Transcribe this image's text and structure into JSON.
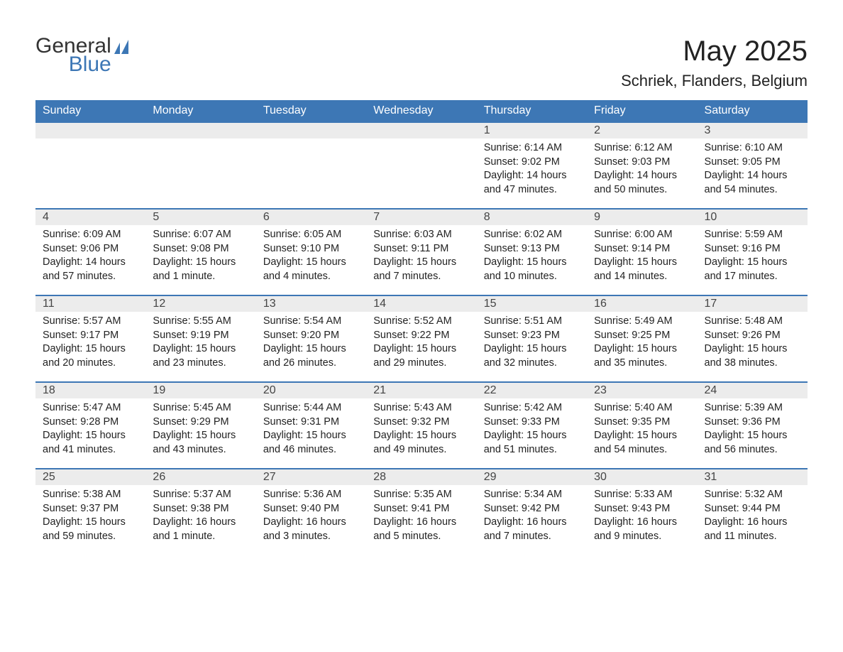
{
  "colors": {
    "header_bg": "#3d77b5",
    "header_text": "#ffffff",
    "daynum_bg": "#ececec",
    "daynum_text": "#444444",
    "week_border": "#3d77b5",
    "body_text": "#222222",
    "background": "#ffffff",
    "logo_grey": "#333333",
    "logo_blue": "#3d77b5"
  },
  "typography": {
    "month_title_size": 40,
    "location_size": 22,
    "dow_size": 16,
    "daynum_size": 16,
    "detail_size": 14.5,
    "font_family": "Arial"
  },
  "logo": {
    "text1": "General",
    "text2": "Blue"
  },
  "title": "May 2025",
  "location": "Schriek, Flanders, Belgium",
  "days_of_week": [
    "Sunday",
    "Monday",
    "Tuesday",
    "Wednesday",
    "Thursday",
    "Friday",
    "Saturday"
  ],
  "weeks": [
    [
      null,
      null,
      null,
      null,
      {
        "n": "1",
        "sr": "Sunrise: 6:14 AM",
        "ss": "Sunset: 9:02 PM",
        "dl": "Daylight: 14 hours and 47 minutes."
      },
      {
        "n": "2",
        "sr": "Sunrise: 6:12 AM",
        "ss": "Sunset: 9:03 PM",
        "dl": "Daylight: 14 hours and 50 minutes."
      },
      {
        "n": "3",
        "sr": "Sunrise: 6:10 AM",
        "ss": "Sunset: 9:05 PM",
        "dl": "Daylight: 14 hours and 54 minutes."
      }
    ],
    [
      {
        "n": "4",
        "sr": "Sunrise: 6:09 AM",
        "ss": "Sunset: 9:06 PM",
        "dl": "Daylight: 14 hours and 57 minutes."
      },
      {
        "n": "5",
        "sr": "Sunrise: 6:07 AM",
        "ss": "Sunset: 9:08 PM",
        "dl": "Daylight: 15 hours and 1 minute."
      },
      {
        "n": "6",
        "sr": "Sunrise: 6:05 AM",
        "ss": "Sunset: 9:10 PM",
        "dl": "Daylight: 15 hours and 4 minutes."
      },
      {
        "n": "7",
        "sr": "Sunrise: 6:03 AM",
        "ss": "Sunset: 9:11 PM",
        "dl": "Daylight: 15 hours and 7 minutes."
      },
      {
        "n": "8",
        "sr": "Sunrise: 6:02 AM",
        "ss": "Sunset: 9:13 PM",
        "dl": "Daylight: 15 hours and 10 minutes."
      },
      {
        "n": "9",
        "sr": "Sunrise: 6:00 AM",
        "ss": "Sunset: 9:14 PM",
        "dl": "Daylight: 15 hours and 14 minutes."
      },
      {
        "n": "10",
        "sr": "Sunrise: 5:59 AM",
        "ss": "Sunset: 9:16 PM",
        "dl": "Daylight: 15 hours and 17 minutes."
      }
    ],
    [
      {
        "n": "11",
        "sr": "Sunrise: 5:57 AM",
        "ss": "Sunset: 9:17 PM",
        "dl": "Daylight: 15 hours and 20 minutes."
      },
      {
        "n": "12",
        "sr": "Sunrise: 5:55 AM",
        "ss": "Sunset: 9:19 PM",
        "dl": "Daylight: 15 hours and 23 minutes."
      },
      {
        "n": "13",
        "sr": "Sunrise: 5:54 AM",
        "ss": "Sunset: 9:20 PM",
        "dl": "Daylight: 15 hours and 26 minutes."
      },
      {
        "n": "14",
        "sr": "Sunrise: 5:52 AM",
        "ss": "Sunset: 9:22 PM",
        "dl": "Daylight: 15 hours and 29 minutes."
      },
      {
        "n": "15",
        "sr": "Sunrise: 5:51 AM",
        "ss": "Sunset: 9:23 PM",
        "dl": "Daylight: 15 hours and 32 minutes."
      },
      {
        "n": "16",
        "sr": "Sunrise: 5:49 AM",
        "ss": "Sunset: 9:25 PM",
        "dl": "Daylight: 15 hours and 35 minutes."
      },
      {
        "n": "17",
        "sr": "Sunrise: 5:48 AM",
        "ss": "Sunset: 9:26 PM",
        "dl": "Daylight: 15 hours and 38 minutes."
      }
    ],
    [
      {
        "n": "18",
        "sr": "Sunrise: 5:47 AM",
        "ss": "Sunset: 9:28 PM",
        "dl": "Daylight: 15 hours and 41 minutes."
      },
      {
        "n": "19",
        "sr": "Sunrise: 5:45 AM",
        "ss": "Sunset: 9:29 PM",
        "dl": "Daylight: 15 hours and 43 minutes."
      },
      {
        "n": "20",
        "sr": "Sunrise: 5:44 AM",
        "ss": "Sunset: 9:31 PM",
        "dl": "Daylight: 15 hours and 46 minutes."
      },
      {
        "n": "21",
        "sr": "Sunrise: 5:43 AM",
        "ss": "Sunset: 9:32 PM",
        "dl": "Daylight: 15 hours and 49 minutes."
      },
      {
        "n": "22",
        "sr": "Sunrise: 5:42 AM",
        "ss": "Sunset: 9:33 PM",
        "dl": "Daylight: 15 hours and 51 minutes."
      },
      {
        "n": "23",
        "sr": "Sunrise: 5:40 AM",
        "ss": "Sunset: 9:35 PM",
        "dl": "Daylight: 15 hours and 54 minutes."
      },
      {
        "n": "24",
        "sr": "Sunrise: 5:39 AM",
        "ss": "Sunset: 9:36 PM",
        "dl": "Daylight: 15 hours and 56 minutes."
      }
    ],
    [
      {
        "n": "25",
        "sr": "Sunrise: 5:38 AM",
        "ss": "Sunset: 9:37 PM",
        "dl": "Daylight: 15 hours and 59 minutes."
      },
      {
        "n": "26",
        "sr": "Sunrise: 5:37 AM",
        "ss": "Sunset: 9:38 PM",
        "dl": "Daylight: 16 hours and 1 minute."
      },
      {
        "n": "27",
        "sr": "Sunrise: 5:36 AM",
        "ss": "Sunset: 9:40 PM",
        "dl": "Daylight: 16 hours and 3 minutes."
      },
      {
        "n": "28",
        "sr": "Sunrise: 5:35 AM",
        "ss": "Sunset: 9:41 PM",
        "dl": "Daylight: 16 hours and 5 minutes."
      },
      {
        "n": "29",
        "sr": "Sunrise: 5:34 AM",
        "ss": "Sunset: 9:42 PM",
        "dl": "Daylight: 16 hours and 7 minutes."
      },
      {
        "n": "30",
        "sr": "Sunrise: 5:33 AM",
        "ss": "Sunset: 9:43 PM",
        "dl": "Daylight: 16 hours and 9 minutes."
      },
      {
        "n": "31",
        "sr": "Sunrise: 5:32 AM",
        "ss": "Sunset: 9:44 PM",
        "dl": "Daylight: 16 hours and 11 minutes."
      }
    ]
  ]
}
